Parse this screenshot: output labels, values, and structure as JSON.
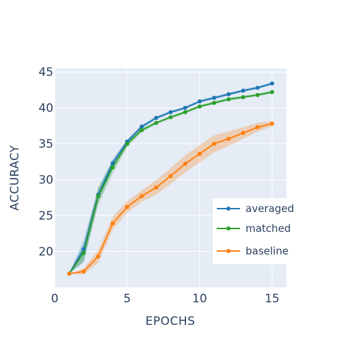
{
  "chart_data": {
    "type": "line",
    "xlabel": "EPOCHS",
    "ylabel": "ACCURACY",
    "xlim": [
      0,
      16
    ],
    "ylim": [
      15,
      45.5
    ],
    "x_ticks": [
      0,
      5,
      10,
      15
    ],
    "y_ticks": [
      20,
      25,
      30,
      35,
      40,
      45
    ],
    "grid": true,
    "legend_position": "bottom-right",
    "background_color": "#e5ecf6",
    "series": [
      {
        "name": "averaged",
        "color": "#1f77b4",
        "x": [
          1,
          2,
          3,
          4,
          5,
          6,
          7,
          8,
          9,
          10,
          11,
          12,
          13,
          14,
          15
        ],
        "y": [
          16.9,
          20.3,
          27.9,
          32.3,
          35.3,
          37.4,
          38.6,
          39.4,
          40.0,
          40.9,
          41.4,
          41.9,
          42.4,
          42.8,
          43.4
        ],
        "band_lower": [
          16.9,
          18.5,
          26.8,
          31.6,
          34.9,
          37.1,
          38.4,
          39.2,
          39.8,
          40.7,
          41.2,
          41.7,
          42.2,
          42.6,
          43.2
        ],
        "band_upper": [
          16.9,
          21.6,
          28.8,
          32.9,
          35.6,
          37.6,
          38.8,
          39.6,
          40.2,
          41.1,
          41.6,
          42.1,
          42.6,
          43.0,
          43.6
        ]
      },
      {
        "name": "matched",
        "color": "#2ca02c",
        "x": [
          1,
          2,
          3,
          4,
          5,
          6,
          7,
          8,
          9,
          10,
          11,
          12,
          13,
          14,
          15
        ],
        "y": [
          16.9,
          19.8,
          27.7,
          31.7,
          35.0,
          36.9,
          37.9,
          38.7,
          39.4,
          40.2,
          40.7,
          41.2,
          41.5,
          41.8,
          42.2
        ],
        "band_lower": [
          16.9,
          18.6,
          26.5,
          30.9,
          34.5,
          36.6,
          37.7,
          38.5,
          39.2,
          40.0,
          40.5,
          41.0,
          41.3,
          41.6,
          42.0
        ],
        "band_upper": [
          16.9,
          20.9,
          28.9,
          32.5,
          35.5,
          37.2,
          38.1,
          38.9,
          39.6,
          40.4,
          40.9,
          41.4,
          41.7,
          42.0,
          42.4
        ]
      },
      {
        "name": "baseline",
        "color": "#ff7f0e",
        "x": [
          1,
          2,
          3,
          4,
          5,
          6,
          7,
          8,
          9,
          10,
          11,
          12,
          13,
          14,
          15
        ],
        "y": [
          16.9,
          17.2,
          19.3,
          23.9,
          26.2,
          27.7,
          28.9,
          30.5,
          32.2,
          33.6,
          35.0,
          35.7,
          36.5,
          37.3,
          37.8
        ],
        "band_lower": [
          16.9,
          16.8,
          18.4,
          23.0,
          25.4,
          26.9,
          27.9,
          29.4,
          31.0,
          32.4,
          33.8,
          34.7,
          35.7,
          36.7,
          37.4
        ],
        "band_upper": [
          16.9,
          17.6,
          20.2,
          24.8,
          27.0,
          28.5,
          29.9,
          31.6,
          33.4,
          34.8,
          36.2,
          36.7,
          37.3,
          37.9,
          38.2
        ]
      }
    ]
  }
}
